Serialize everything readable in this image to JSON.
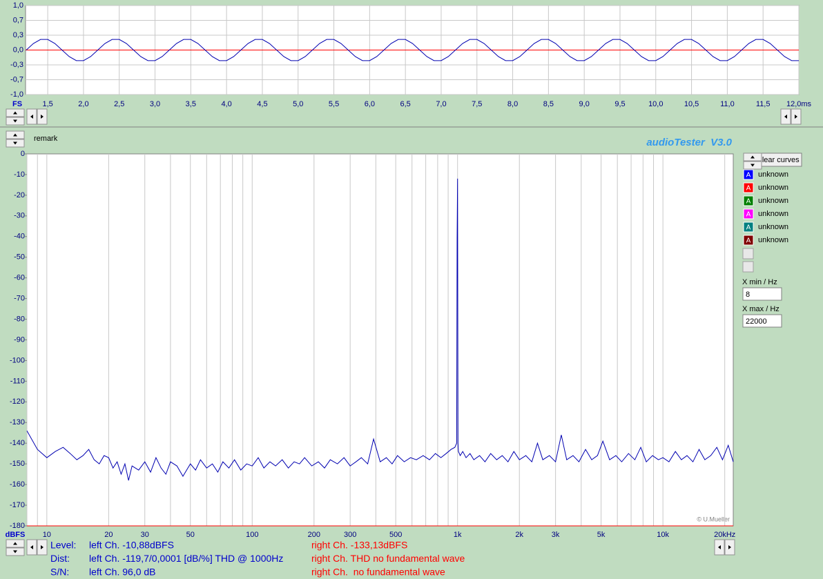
{
  "app": {
    "title": "audioTester  V3.0",
    "remark": "remark",
    "copyright": "© U.Mueller",
    "clear_button": "clear curves",
    "xmin_label": "X min / Hz",
    "xmax_label": "X max / Hz"
  },
  "chart_data": [
    {
      "type": "line",
      "x_label": "FS",
      "xlim": [
        1.19,
        12.0
      ],
      "ylim": [
        -1,
        1
      ],
      "grid": true,
      "xticks": [
        {
          "value": 1.5,
          "label": "1,5"
        },
        {
          "value": 2.0,
          "label": "2,0"
        },
        {
          "value": 2.5,
          "label": "2,5"
        },
        {
          "value": 3.0,
          "label": "3,0"
        },
        {
          "value": 3.5,
          "label": "3,5"
        },
        {
          "value": 4.0,
          "label": "4,0"
        },
        {
          "value": 4.5,
          "label": "4,5"
        },
        {
          "value": 5.0,
          "label": "5,0"
        },
        {
          "value": 5.5,
          "label": "5,5"
        },
        {
          "value": 6.0,
          "label": "6,0"
        },
        {
          "value": 6.5,
          "label": "6,5"
        },
        {
          "value": 7.0,
          "label": "7,0"
        },
        {
          "value": 7.5,
          "label": "7,5"
        },
        {
          "value": 8.0,
          "label": "8,0"
        },
        {
          "value": 8.5,
          "label": "8,5"
        },
        {
          "value": 9.0,
          "label": "9,0"
        },
        {
          "value": 9.5,
          "label": "9,5"
        },
        {
          "value": 10.0,
          "label": "10,0"
        },
        {
          "value": 10.5,
          "label": "10,5"
        },
        {
          "value": 11.0,
          "label": "11,0"
        },
        {
          "value": 11.5,
          "label": "11,5"
        },
        {
          "value": 12.0,
          "label": "12,0ms"
        }
      ],
      "yticks": [
        {
          "value": 1,
          "label": "1,0"
        },
        {
          "value": 0.667,
          "label": "0,7"
        },
        {
          "value": 0.333,
          "label": "0,3"
        },
        {
          "value": 0,
          "label": "0,0"
        },
        {
          "value": -0.333,
          "label": "-0,3"
        },
        {
          "value": -0.667,
          "label": "-0,7"
        },
        {
          "value": -1,
          "label": "-1,0"
        }
      ],
      "series": [
        {
          "color": "#0000b0",
          "x": [
            1.2,
            1.3,
            1.4,
            1.5,
            1.6,
            1.7,
            1.8,
            1.9,
            2.0,
            2.1,
            2.2,
            2.3,
            2.4,
            2.5,
            2.6,
            2.7,
            2.8,
            2.9,
            3.0,
            3.1,
            3.2,
            3.3,
            3.4,
            3.5,
            3.6,
            3.7,
            3.8,
            3.9,
            4.0,
            4.1,
            4.2,
            4.3,
            4.4,
            4.5,
            4.6,
            4.7,
            4.8,
            4.9,
            5.0,
            5.1,
            5.2,
            5.3,
            5.4,
            5.5,
            5.6,
            5.7,
            5.8,
            5.9,
            6.0,
            6.1,
            6.2,
            6.3,
            6.4,
            6.5,
            6.6,
            6.7,
            6.8,
            6.9,
            7.0,
            7.1,
            7.2,
            7.3,
            7.4,
            7.5,
            7.6,
            7.7,
            7.8,
            7.9,
            8.0,
            8.1,
            8.2,
            8.3,
            8.4,
            8.5,
            8.6,
            8.7,
            8.8,
            8.9,
            9.0,
            9.1,
            9.2,
            9.3,
            9.4,
            9.5,
            9.6,
            9.7,
            9.8,
            9.9,
            10.0,
            10.1,
            10.2,
            10.3,
            10.4,
            10.5,
            10.6,
            10.7,
            10.8,
            10.9,
            11.0,
            11.1,
            11.2,
            11.3,
            11.4,
            11.5,
            11.6,
            11.7,
            11.8,
            11.9,
            12.0
          ],
          "values": [
            0,
            0.147,
            0.238,
            0.238,
            0.147,
            0,
            -0.147,
            -0.238,
            -0.238,
            -0.147,
            0,
            0.147,
            0.238,
            0.238,
            0.147,
            0,
            -0.147,
            -0.238,
            -0.238,
            -0.147,
            0,
            0.147,
            0.238,
            0.238,
            0.147,
            0,
            -0.147,
            -0.238,
            -0.238,
            -0.147,
            0,
            0.147,
            0.238,
            0.238,
            0.147,
            0,
            -0.147,
            -0.238,
            -0.238,
            -0.147,
            0,
            0.147,
            0.238,
            0.238,
            0.147,
            0,
            -0.147,
            -0.238,
            -0.238,
            -0.147,
            0,
            0.147,
            0.238,
            0.238,
            0.147,
            0,
            -0.147,
            -0.238,
            -0.238,
            -0.147,
            0,
            0.147,
            0.238,
            0.238,
            0.147,
            0,
            -0.147,
            -0.238,
            -0.238,
            -0.147,
            0,
            0.147,
            0.238,
            0.238,
            0.147,
            0,
            -0.147,
            -0.238,
            -0.238,
            -0.147,
            0,
            0.147,
            0.238,
            0.238,
            0.147,
            0,
            -0.147,
            -0.238,
            -0.238,
            -0.147,
            0,
            0.147,
            0.238,
            0.238,
            0.147,
            0,
            -0.147,
            -0.238,
            -0.238,
            -0.147,
            0,
            0.147,
            0.238,
            0.238,
            0.147,
            0,
            -0.147,
            -0.238,
            -0.238
          ]
        },
        {
          "color": "#ff0000",
          "x": [
            1.19,
            12.0
          ],
          "values": [
            0,
            0
          ]
        }
      ]
    },
    {
      "type": "line",
      "log_x": true,
      "y_label": "dBFS",
      "xlim": [
        8,
        22000
      ],
      "ylim": [
        -180,
        0
      ],
      "grid": "x",
      "xticks": [
        10,
        20,
        30,
        50,
        100,
        200,
        300,
        500,
        {
          "value": 1000,
          "label": "1k"
        },
        {
          "value": 2000,
          "label": "2k"
        },
        {
          "value": 3000,
          "label": "3k"
        },
        {
          "value": 5000,
          "label": "5k"
        },
        {
          "value": 10000,
          "label": "10k"
        },
        {
          "value": 20000,
          "label": "20kHz"
        }
      ],
      "xgrid": [
        8,
        9,
        10,
        20,
        30,
        40,
        50,
        60,
        70,
        80,
        90,
        100,
        200,
        300,
        400,
        500,
        600,
        700,
        800,
        900,
        1000,
        2000,
        3000,
        4000,
        5000,
        6000,
        7000,
        8000,
        9000,
        10000,
        20000
      ],
      "yticks": [
        0,
        -10,
        -20,
        -30,
        -40,
        -50,
        -60,
        -70,
        -80,
        -90,
        -100,
        -110,
        -120,
        -130,
        -140,
        -150,
        -160,
        -170,
        -180
      ],
      "series": [
        {
          "color": "#0000b0",
          "x": [
            8,
            9,
            10,
            11,
            12,
            13,
            14,
            15,
            16,
            17,
            18,
            19,
            20,
            21,
            22,
            23,
            24,
            25,
            26,
            28,
            30,
            32,
            34,
            36,
            38,
            40,
            43,
            46,
            50,
            53,
            56,
            60,
            64,
            68,
            72,
            77,
            82,
            88,
            94,
            100,
            107,
            114,
            122,
            130,
            140,
            150,
            160,
            170,
            180,
            195,
            210,
            225,
            240,
            260,
            280,
            300,
            320,
            340,
            365,
            390,
            420,
            450,
            480,
            510,
            550,
            590,
            630,
            680,
            730,
            780,
            830,
            880,
            930,
            970,
            990,
            995,
            1000,
            1005,
            1010,
            1030,
            1060,
            1100,
            1150,
            1200,
            1280,
            1360,
            1450,
            1550,
            1650,
            1760,
            1880,
            2000,
            2150,
            2300,
            2450,
            2600,
            2800,
            3000,
            3200,
            3400,
            3650,
            3900,
            4200,
            4500,
            4800,
            5100,
            5500,
            5900,
            6300,
            6800,
            7300,
            7800,
            8300,
            8900,
            9500,
            10000,
            10700,
            11500,
            12300,
            13100,
            14000,
            15000,
            16000,
            17100,
            18300,
            19500,
            20800,
            22000
          ],
          "values": [
            -134,
            -143,
            -147,
            -144,
            -142,
            -145,
            -148,
            -146,
            -143,
            -148,
            -150,
            -146,
            -147,
            -152,
            -149,
            -155,
            -150,
            -158,
            -151,
            -153,
            -149,
            -154,
            -147,
            -152,
            -155,
            -149,
            -151,
            -156,
            -150,
            -153,
            -148,
            -152,
            -150,
            -154,
            -149,
            -152,
            -148,
            -153,
            -150,
            -151,
            -147,
            -152,
            -149,
            -151,
            -148,
            -152,
            -149,
            -150,
            -147,
            -151,
            -149,
            -152,
            -148,
            -150,
            -147,
            -151,
            -149,
            -147,
            -150,
            -138,
            -149,
            -147,
            -150,
            -146,
            -149,
            -147,
            -148,
            -146,
            -148,
            -145,
            -147,
            -145,
            -143,
            -142,
            -140,
            -41,
            -12,
            -140,
            -144,
            -146,
            -144,
            -147,
            -145,
            -148,
            -146,
            -149,
            -145,
            -148,
            -146,
            -149,
            -144,
            -148,
            -146,
            -149,
            -140,
            -148,
            -146,
            -149,
            -136,
            -148,
            -146,
            -149,
            -143,
            -148,
            -146,
            -139,
            -148,
            -146,
            -149,
            -145,
            -148,
            -142,
            -149,
            -146,
            -148,
            -147,
            -149,
            -144,
            -148,
            -146,
            -149,
            -143,
            -148,
            -146,
            -142,
            -148,
            -141,
            -149
          ]
        },
        {
          "color": "#ff0000",
          "x": [
            8,
            22000
          ],
          "values": [
            -180,
            -180
          ]
        }
      ]
    }
  ],
  "legend": [
    {
      "icon": "A",
      "label": "unknown",
      "color": "#0000ff"
    },
    {
      "icon": "A",
      "label": "unknown",
      "color": "#ff0000"
    },
    {
      "icon": "A",
      "label": "unknown",
      "color": "#008000"
    },
    {
      "icon": "A",
      "label": "unknown",
      "color": "#ff00ff"
    },
    {
      "icon": "A",
      "label": "unknown",
      "color": "#008080"
    },
    {
      "icon": "A",
      "label": "unknown",
      "color": "#800000"
    }
  ],
  "status": {
    "rows": [
      [
        "Level:",
        "left Ch. -10,88dBFS",
        "right Ch. -133,13dBFS"
      ],
      [
        "Dist:",
        "left Ch. -119,7/0,0001 [dB/%] THD @ 1000Hz",
        "right Ch. THD no fundamental wave"
      ],
      [
        "S/N:",
        "left Ch. 96,0 dB",
        "right Ch.  no fundamental wave"
      ]
    ]
  }
}
